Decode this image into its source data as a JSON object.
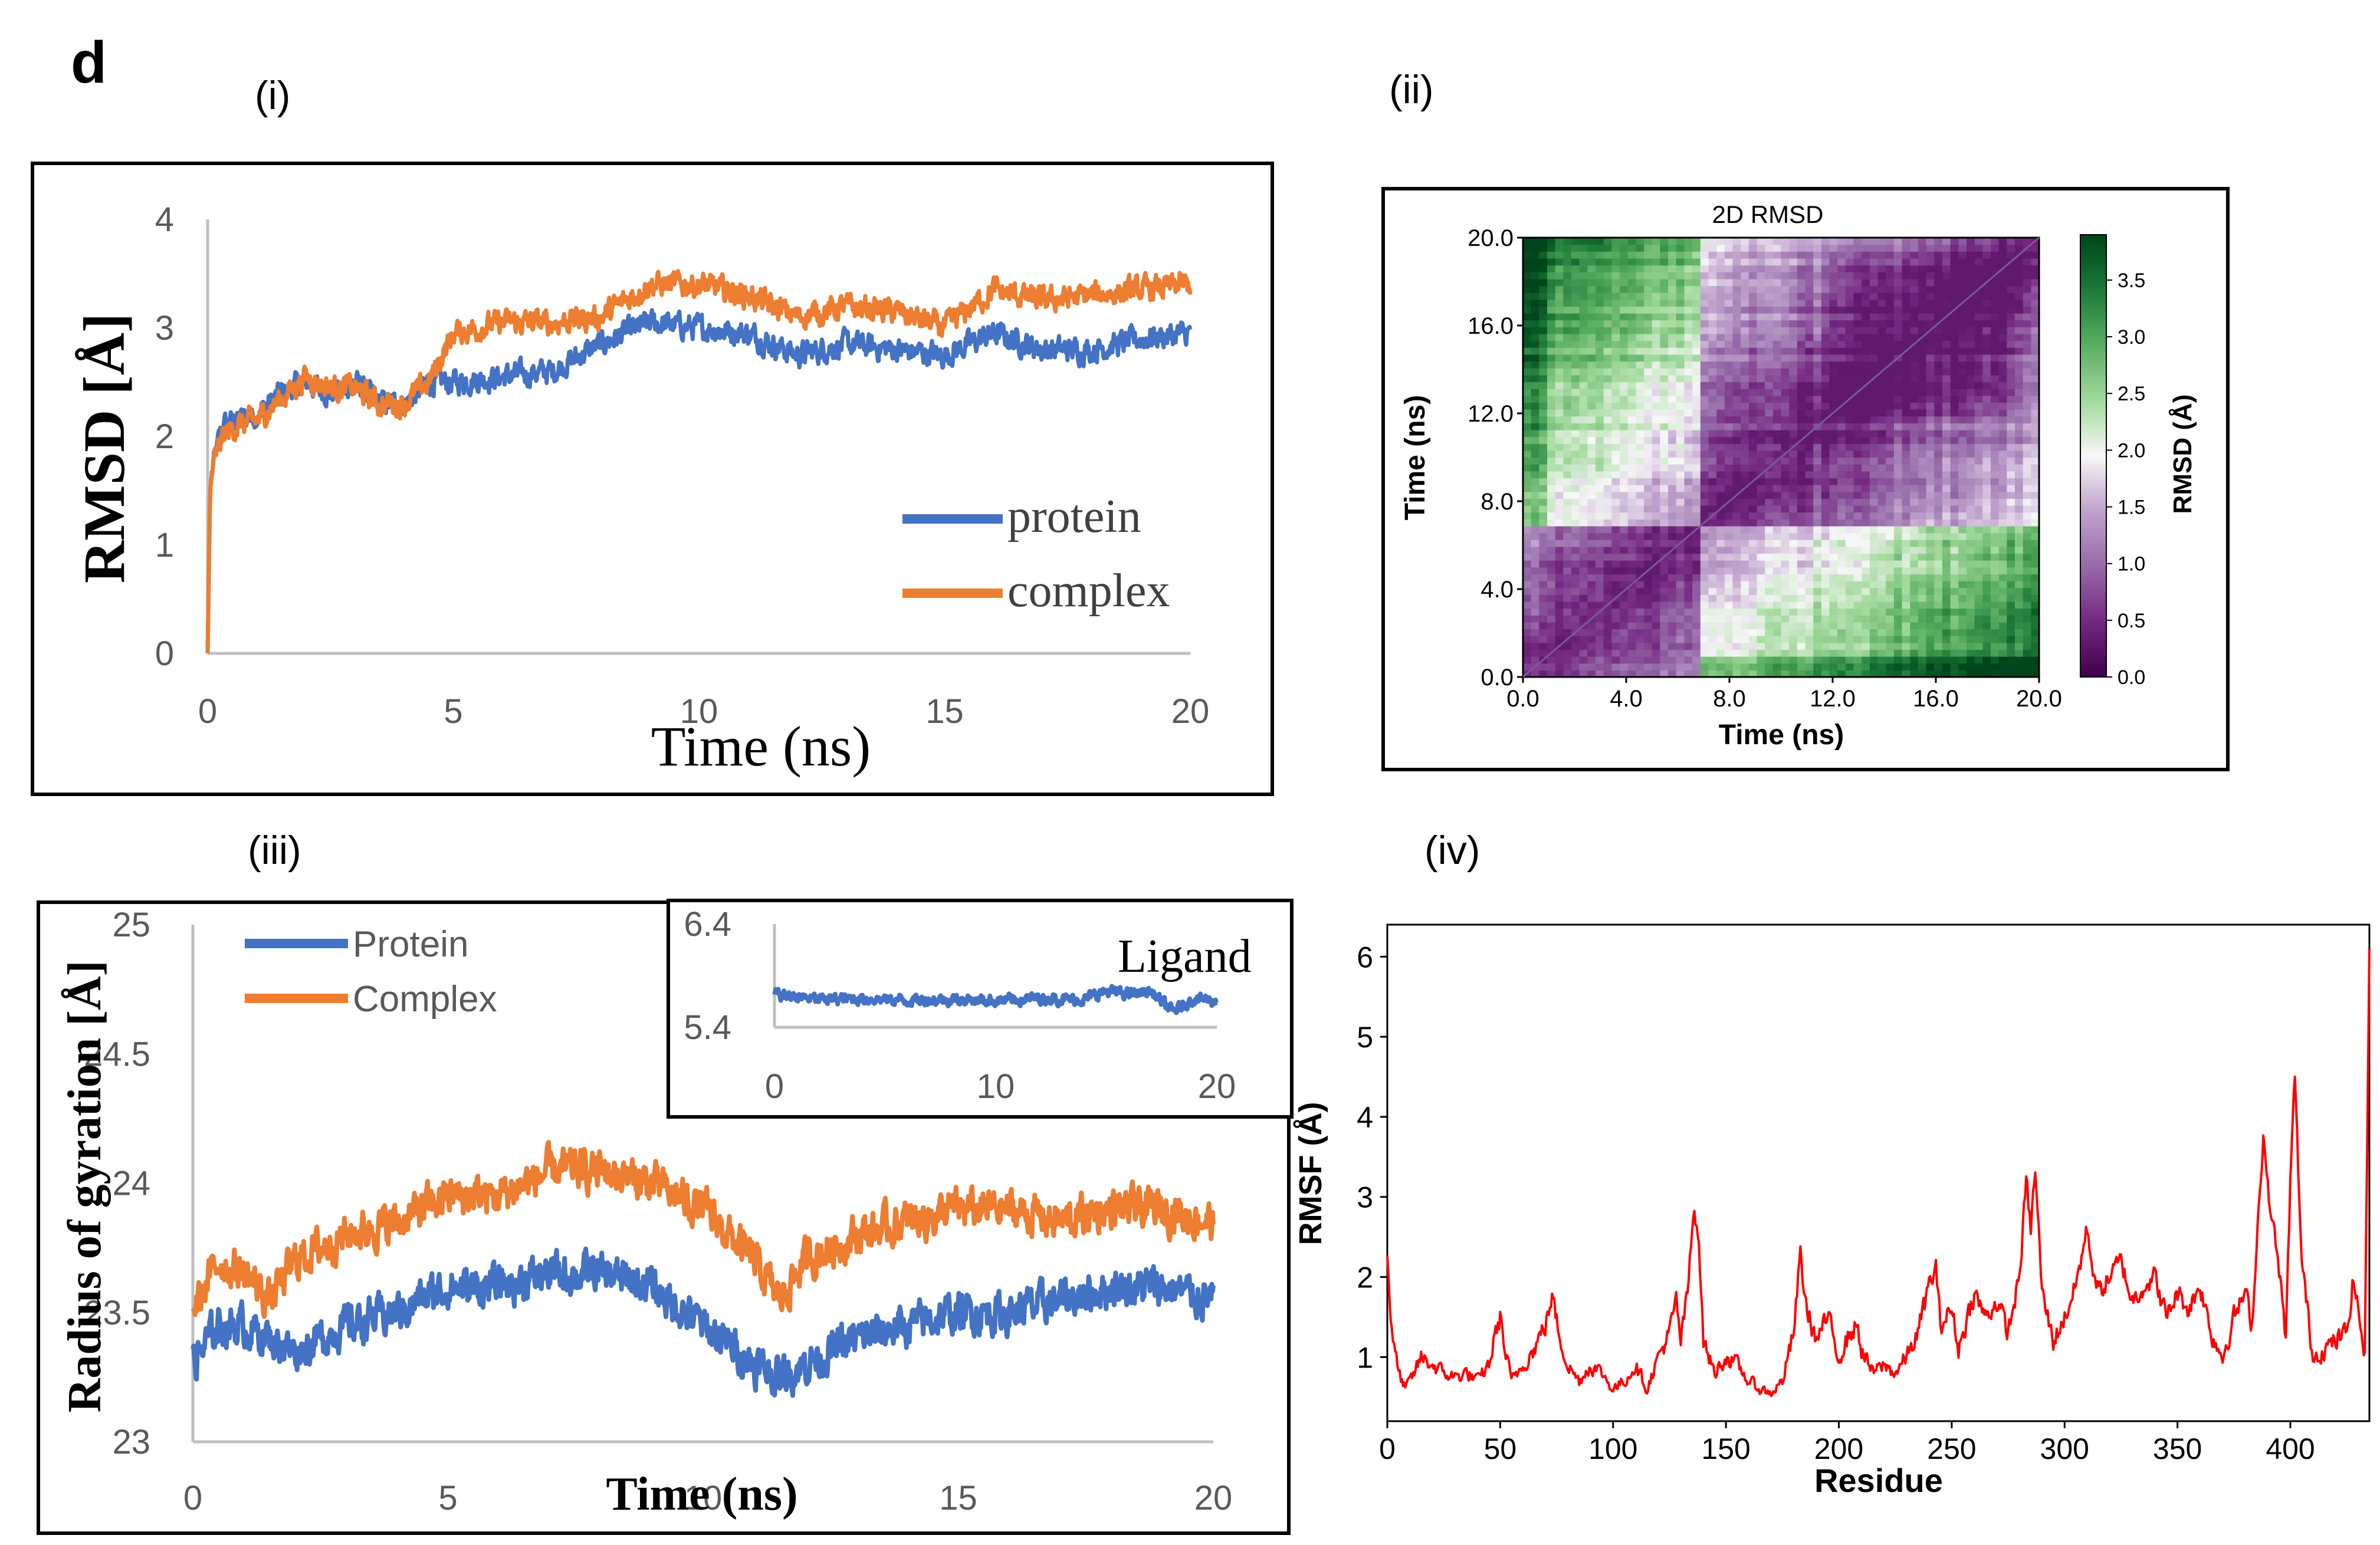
{
  "figure": {
    "panel_letter": "d",
    "subpanel_labels": [
      "(i)",
      "(ii)",
      "(iii)",
      "(iv)"
    ]
  },
  "colors": {
    "protein": "#4472C4",
    "complex": "#ED7D31",
    "rmsf": "#FF0000",
    "axis_gray": "#BFBFBF",
    "tick_text": "#595959",
    "heat_low": "#40004B",
    "heat_mid": "#F7F7F7",
    "heat_high": "#00441B"
  },
  "chart_data": [
    {
      "id": "rmsd",
      "type": "line",
      "xlabel": "Time (ns)",
      "ylabel": "RMSD [Å]",
      "xlim": [
        0,
        20
      ],
      "ylim": [
        0,
        4
      ],
      "xticks": [
        "0",
        "5",
        "10",
        "15",
        "20"
      ],
      "yticks": [
        "0",
        "1",
        "2",
        "3",
        "4"
      ],
      "legend": "inside-lower-right",
      "series": [
        {
          "name": "protein",
          "color": "#4472C4",
          "x": [
            0,
            0.05,
            0.1,
            0.3,
            0.6,
            1,
            1.5,
            2,
            2.5,
            3,
            3.5,
            4,
            4.5,
            5,
            6,
            7,
            8,
            9,
            10,
            11,
            12,
            13,
            14,
            15,
            16,
            17,
            18,
            19,
            20
          ],
          "y": [
            0,
            1.5,
            1.7,
            2.1,
            2.15,
            2.2,
            2.4,
            2.5,
            2.4,
            2.5,
            2.3,
            2.3,
            2.5,
            2.5,
            2.55,
            2.6,
            2.85,
            3.05,
            3.0,
            2.95,
            2.75,
            2.85,
            2.8,
            2.75,
            2.95,
            2.8,
            2.8,
            2.9,
            2.95
          ],
          "noise": 0.09
        },
        {
          "name": "complex",
          "color": "#ED7D31",
          "x": [
            0,
            0.05,
            0.1,
            0.3,
            0.6,
            1,
            1.5,
            2,
            2.5,
            3,
            3.5,
            4,
            4.5,
            5,
            6,
            7,
            8,
            9,
            10,
            11,
            12,
            13,
            14,
            15,
            16,
            17,
            18,
            19,
            20
          ],
          "y": [
            0,
            1.5,
            1.7,
            2.0,
            2.1,
            2.15,
            2.35,
            2.55,
            2.45,
            2.45,
            2.3,
            2.3,
            2.5,
            2.95,
            3.05,
            3.05,
            3.1,
            3.4,
            3.4,
            3.3,
            3.1,
            3.2,
            3.15,
            3.0,
            3.35,
            3.25,
            3.3,
            3.35,
            3.4
          ],
          "noise": 0.09
        }
      ]
    },
    {
      "id": "rmsd2d",
      "type": "heatmap",
      "title": "2D RMSD",
      "xlabel": "Time (ns)",
      "ylabel": "Time (ns)",
      "xlim": [
        0,
        20
      ],
      "ylim": [
        0,
        20
      ],
      "xticks": [
        "0.0",
        "4.0",
        "8.0",
        "12.0",
        "16.0",
        "20.0"
      ],
      "yticks": [
        "0.0",
        "4.0",
        "8.0",
        "12.0",
        "16.0",
        "20.0"
      ],
      "colorbar_label": "RMSD (Å)",
      "colorbar_range": [
        0,
        3.9
      ],
      "colorbar_ticks": [
        "0.0",
        "0.5",
        "1.0",
        "1.5",
        "2.0",
        "2.5",
        "3.0",
        "3.5"
      ],
      "colormap": "PRGn"
    },
    {
      "id": "rgyr",
      "type": "line",
      "xlabel": "Time (ns)",
      "ylabel": "Radius of gyration [Å]",
      "xlim": [
        0,
        20
      ],
      "ylim": [
        23,
        25
      ],
      "xticks": [
        "0",
        "5",
        "10",
        "15",
        "20"
      ],
      "yticks": [
        "23",
        "23.5",
        "24",
        "24.5",
        "25"
      ],
      "legend": "top-left",
      "series": [
        {
          "name": "Protein",
          "color": "#4472C4",
          "x": [
            0,
            0.5,
            1,
            1.5,
            2,
            3,
            4,
            5,
            6,
            7,
            8,
            9,
            10,
            11,
            11.5,
            12,
            13,
            14,
            15,
            16,
            17,
            18,
            19,
            20
          ],
          "y": [
            23.3,
            23.45,
            23.45,
            23.4,
            23.35,
            23.45,
            23.5,
            23.6,
            23.6,
            23.65,
            23.65,
            23.6,
            23.45,
            23.3,
            23.25,
            23.3,
            23.4,
            23.45,
            23.5,
            23.5,
            23.55,
            23.6,
            23.6,
            23.55
          ],
          "noise": 0.06
        },
        {
          "name": "Complex",
          "color": "#ED7D31",
          "x": [
            0,
            0.5,
            1,
            1.5,
            2,
            3,
            4,
            5,
            6,
            7,
            8,
            9,
            10,
            11,
            11.5,
            12,
            13,
            14,
            15,
            16,
            17,
            18,
            19,
            20
          ],
          "y": [
            23.5,
            23.7,
            23.65,
            23.55,
            23.7,
            23.8,
            23.85,
            23.95,
            23.95,
            24.05,
            24.05,
            24.0,
            23.9,
            23.7,
            23.55,
            23.7,
            23.8,
            23.85,
            23.9,
            23.9,
            23.85,
            23.9,
            23.9,
            23.85
          ],
          "noise": 0.06
        }
      ]
    },
    {
      "id": "ligand_inset",
      "type": "line",
      "legend": "Ligand",
      "xlim": [
        0,
        20
      ],
      "ylim": [
        5.4,
        6.4
      ],
      "xticks": [
        "0",
        "10",
        "20"
      ],
      "yticks": [
        "5.4",
        "6.4"
      ],
      "series": [
        {
          "name": "Ligand",
          "color": "#4472C4",
          "x": [
            0,
            2,
            4,
            6,
            8,
            10,
            12,
            14,
            15,
            16,
            17,
            18,
            19,
            20
          ],
          "y": [
            5.72,
            5.67,
            5.68,
            5.66,
            5.67,
            5.66,
            5.68,
            5.67,
            5.75,
            5.72,
            5.75,
            5.55,
            5.68,
            5.66
          ],
          "noise": 0.04
        }
      ]
    },
    {
      "id": "rmsf",
      "type": "line",
      "xlabel": "Residue",
      "ylabel": "RMSF (Å)",
      "xlim": [
        0,
        435
      ],
      "ylim": [
        0.2,
        6.4
      ],
      "xticks": [
        "0",
        "50",
        "100",
        "150",
        "200",
        "250",
        "300",
        "350",
        "400"
      ],
      "yticks": [
        "1",
        "2",
        "3",
        "4",
        "5",
        "6"
      ],
      "series": [
        {
          "name": "RMSF",
          "color": "#FF0000",
          "x": [
            0,
            2,
            5,
            8,
            12,
            15,
            20,
            25,
            30,
            35,
            40,
            45,
            48,
            50,
            52,
            55,
            60,
            65,
            70,
            73,
            76,
            80,
            85,
            90,
            95,
            100,
            105,
            110,
            115,
            120,
            125,
            128,
            130,
            133,
            136,
            138,
            140,
            145,
            150,
            155,
            160,
            165,
            170,
            175,
            180,
            183,
            185,
            190,
            195,
            200,
            205,
            208,
            210,
            215,
            220,
            225,
            230,
            235,
            240,
            243,
            245,
            250,
            253,
            255,
            260,
            265,
            270,
            275,
            280,
            283,
            285,
            287,
            290,
            295,
            300,
            305,
            310,
            312,
            315,
            320,
            325,
            330,
            335,
            340,
            345,
            350,
            355,
            360,
            365,
            370,
            375,
            380,
            383,
            385,
            388,
            390,
            395,
            398,
            400,
            402,
            405,
            410,
            415,
            420,
            425,
            428,
            430,
            433,
            435
          ],
          "y": [
            2.3,
            1.3,
            0.8,
            0.6,
            0.8,
            1.0,
            0.9,
            0.8,
            0.75,
            0.8,
            0.7,
            0.9,
            1.3,
            1.5,
            1.1,
            0.7,
            0.9,
            1.1,
            1.4,
            1.75,
            1.3,
            0.9,
            0.7,
            0.9,
            0.8,
            0.6,
            0.7,
            0.9,
            0.6,
            1.0,
            1.3,
            1.7,
            1.2,
            1.8,
            2.9,
            2.5,
            1.2,
            0.8,
            1.0,
            0.9,
            0.7,
            0.6,
            0.55,
            0.7,
            1.3,
            2.3,
            1.7,
            1.2,
            1.5,
            1.0,
            1.3,
            1.4,
            1.1,
            0.8,
            0.9,
            0.8,
            1.0,
            1.3,
            1.9,
            2.1,
            1.4,
            1.6,
            1.1,
            1.3,
            1.8,
            1.5,
            1.7,
            1.3,
            2.0,
            3.2,
            2.6,
            3.35,
            1.8,
            1.2,
            1.5,
            1.9,
            2.6,
            2.2,
            1.8,
            2.0,
            2.2,
            1.7,
            1.9,
            2.0,
            1.5,
            1.8,
            1.6,
            1.9,
            1.3,
            1.0,
            1.5,
            1.8,
            1.4,
            2.4,
            3.8,
            3.1,
            2.1,
            1.2,
            3.2,
            4.5,
            2.2,
            1.0,
            1.1,
            1.2,
            1.3,
            2.0,
            1.6,
            1.0,
            6.2
          ],
          "noise": 0.12
        }
      ]
    }
  ]
}
